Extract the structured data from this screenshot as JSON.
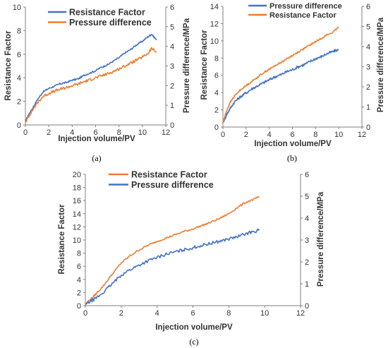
{
  "colors": {
    "blue": "#4472C4",
    "orange": "#ED7D31",
    "axis": "#7f7f7f",
    "text": "#333333"
  },
  "chart_data": [
    {
      "type": "line",
      "panel_label": "(a)",
      "xlabel": "Injection volume/PV",
      "ylabel": "Resistance Factor",
      "y2label": "Pressure difference/MPa",
      "xlim": [
        0,
        12
      ],
      "ylim": [
        0,
        10
      ],
      "y2lim": [
        0,
        6
      ],
      "xticks": [
        "0",
        "2",
        "4",
        "6",
        "8",
        "10",
        "12"
      ],
      "yticks": [
        "0",
        "2",
        "4",
        "6",
        "8",
        "10"
      ],
      "y2ticks": [
        "0",
        "1",
        "2",
        "3",
        "4",
        "5",
        "6"
      ],
      "grid": false,
      "legend": {
        "position": "top-center",
        "order": [
          "Resistance Factor",
          "Pressure difference"
        ]
      },
      "series": [
        {
          "name": "Resistance Factor",
          "color": "blue",
          "axis": "left",
          "x": [
            0,
            0.3,
            0.6,
            1.0,
            1.5,
            2.0,
            2.5,
            3.0,
            3.5,
            4.0,
            4.5,
            5.0,
            5.5,
            6.0,
            6.5,
            7.0,
            7.5,
            8.0,
            8.5,
            9.0,
            9.5,
            10.0,
            10.5,
            10.8,
            11.2
          ],
          "y": [
            0.3,
            0.9,
            1.4,
            2.1,
            2.8,
            3.1,
            3.3,
            3.5,
            3.6,
            3.8,
            3.9,
            4.2,
            4.4,
            4.6,
            4.9,
            5.1,
            5.4,
            5.7,
            6.1,
            6.4,
            6.8,
            7.1,
            7.5,
            7.7,
            7.2
          ]
        },
        {
          "name": "Pressure difference",
          "color": "orange",
          "axis": "right",
          "x": [
            0,
            0.3,
            0.6,
            1.0,
            1.5,
            2.0,
            2.5,
            3.0,
            3.5,
            4.0,
            4.5,
            5.0,
            5.5,
            6.0,
            6.5,
            7.0,
            7.5,
            8.0,
            8.5,
            9.0,
            9.5,
            10.0,
            10.5,
            10.8,
            11.2
          ],
          "y": [
            0.12,
            0.45,
            0.75,
            1.1,
            1.45,
            1.6,
            1.72,
            1.82,
            1.9,
            2.0,
            2.08,
            2.2,
            2.3,
            2.4,
            2.5,
            2.6,
            2.72,
            2.85,
            3.0,
            3.15,
            3.3,
            3.45,
            3.65,
            3.9,
            3.7
          ]
        }
      ]
    },
    {
      "type": "line",
      "panel_label": "(b)",
      "xlabel": "Injection volume/PV",
      "ylabel": "Resistance Factor",
      "y2label": "Pressure difference/MPa",
      "xlim": [
        0,
        12
      ],
      "ylim": [
        0,
        14
      ],
      "y2lim": [
        0,
        6
      ],
      "xticks": [
        "0",
        "2",
        "4",
        "6",
        "8",
        "10",
        "12"
      ],
      "yticks": [
        "0",
        "2",
        "4",
        "6",
        "8",
        "10",
        "12",
        "14"
      ],
      "y2ticks": [
        "0",
        "1",
        "2",
        "3",
        "4",
        "5",
        "6"
      ],
      "grid": false,
      "legend": {
        "position": "top-center",
        "order": [
          "Pressure difference",
          "Resistance Factor"
        ]
      },
      "series": [
        {
          "name": "Pressure difference",
          "color": "blue",
          "axis": "right",
          "x": [
            0,
            0.3,
            0.6,
            1.0,
            1.5,
            2.0,
            2.5,
            3.0,
            3.5,
            4.0,
            4.5,
            5.0,
            5.5,
            6.0,
            6.5,
            7.0,
            7.5,
            8.0,
            8.5,
            9.0,
            9.5,
            10.0
          ],
          "y": [
            0.2,
            0.6,
            0.9,
            1.25,
            1.5,
            1.7,
            1.9,
            2.05,
            2.2,
            2.35,
            2.5,
            2.6,
            2.75,
            2.85,
            3.0,
            3.1,
            3.25,
            3.4,
            3.5,
            3.65,
            3.75,
            3.85
          ]
        },
        {
          "name": "Resistance Factor",
          "color": "orange",
          "axis": "left",
          "x": [
            0,
            0.3,
            0.6,
            1.0,
            1.5,
            2.0,
            2.5,
            3.0,
            3.5,
            4.0,
            4.5,
            5.0,
            5.5,
            6.0,
            6.5,
            7.0,
            7.5,
            8.0,
            8.5,
            9.0,
            9.5,
            10.0
          ],
          "y": [
            0.5,
            1.8,
            2.8,
            3.6,
            4.3,
            4.8,
            5.3,
            5.8,
            6.3,
            6.7,
            7.1,
            7.5,
            7.9,
            8.3,
            8.7,
            9.1,
            9.5,
            9.9,
            10.3,
            10.7,
            11.0,
            11.6
          ]
        }
      ]
    },
    {
      "type": "line",
      "panel_label": "(c)",
      "xlabel": "Injection volume/PV",
      "ylabel": "Resistance Factor",
      "y2label": "Pressure difference/MPa",
      "xlim": [
        0,
        12
      ],
      "ylim": [
        0,
        20
      ],
      "y2lim": [
        0,
        6
      ],
      "xticks": [
        "0",
        "2",
        "4",
        "6",
        "8",
        "10",
        "12"
      ],
      "yticks": [
        "0",
        "2",
        "4",
        "6",
        "8",
        "10",
        "12",
        "14",
        "16",
        "18",
        "20"
      ],
      "y2ticks": [
        "0",
        "1",
        "2",
        "3",
        "4",
        "5",
        "6"
      ],
      "grid": false,
      "legend": {
        "position": "top-center",
        "order": [
          "Resistance Factor",
          "Pressure difference"
        ]
      },
      "series": [
        {
          "name": "Resistance Factor",
          "color": "orange",
          "axis": "left",
          "x": [
            0,
            0.3,
            0.6,
            1.0,
            1.5,
            2.0,
            2.5,
            3.0,
            3.5,
            4.0,
            4.5,
            5.0,
            5.5,
            6.0,
            6.5,
            7.0,
            7.5,
            8.0,
            8.5,
            9.0,
            9.5,
            9.7
          ],
          "y": [
            0.3,
            1.0,
            1.8,
            3.0,
            4.8,
            6.5,
            7.6,
            8.5,
            9.2,
            9.8,
            10.3,
            10.8,
            11.3,
            11.7,
            12.2,
            12.7,
            13.3,
            14.0,
            15.0,
            15.8,
            16.3,
            16.6
          ]
        },
        {
          "name": "Pressure difference",
          "color": "blue",
          "axis": "right",
          "x": [
            0,
            0.3,
            0.6,
            1.0,
            1.5,
            2.0,
            2.5,
            3.0,
            3.5,
            4.0,
            4.5,
            5.0,
            5.5,
            6.0,
            6.5,
            7.0,
            7.5,
            8.0,
            8.5,
            9.0,
            9.5,
            9.7
          ],
          "y": [
            0.05,
            0.2,
            0.35,
            0.6,
            1.0,
            1.4,
            1.65,
            1.85,
            2.05,
            2.2,
            2.35,
            2.45,
            2.55,
            2.65,
            2.75,
            2.85,
            2.95,
            3.05,
            3.15,
            3.3,
            3.4,
            3.45
          ]
        }
      ]
    }
  ]
}
